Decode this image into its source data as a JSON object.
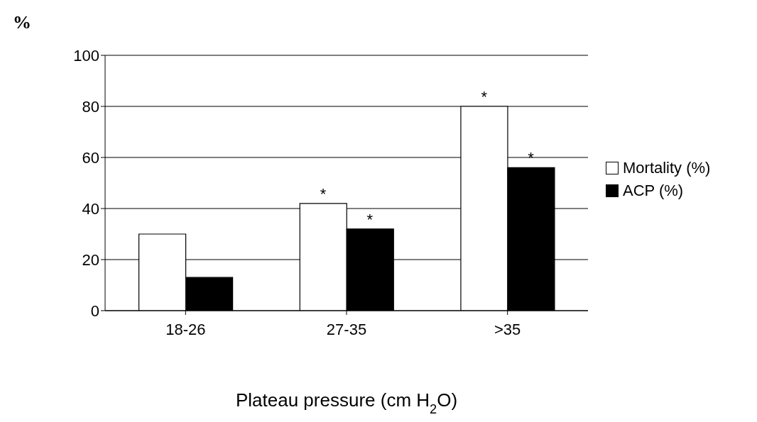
{
  "chart_data": {
    "type": "bar",
    "ylabel": "%",
    "xlabel": "Plateau pressure (cm H$_{2}$O)",
    "categories": [
      "18-26",
      "27-35",
      ">35"
    ],
    "series": [
      {
        "name": "Mortality (%)",
        "color": "#ffffff",
        "values": [
          30,
          42,
          80
        ]
      },
      {
        "name": "ACP (%)",
        "color": "#000000",
        "values": [
          13,
          32,
          56
        ]
      }
    ],
    "ylim": [
      0,
      100
    ],
    "yticks": [
      0,
      20,
      40,
      60,
      80,
      100
    ],
    "grid": "y",
    "legend": "right",
    "annotations": [
      {
        "text": "*",
        "x": "27-35",
        "y": 42
      },
      {
        "text": "*",
        "x": "27-35",
        "y": 32
      },
      {
        "text": "*",
        "x": ">35",
        "y": 80
      },
      {
        "text": "*",
        "x": ">35",
        "y": 56
      }
    ]
  }
}
